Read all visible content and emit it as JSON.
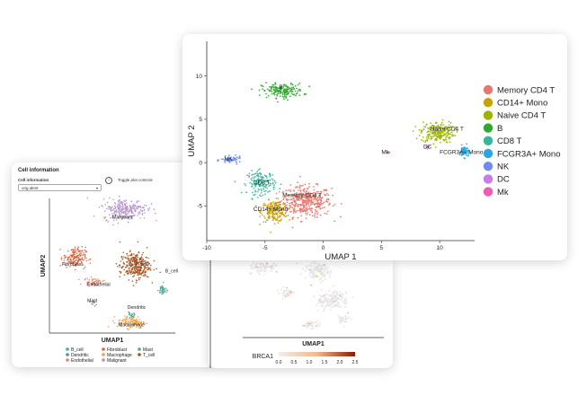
{
  "left_panel": {
    "title": "Cell information",
    "field_label": "Cell information",
    "select_value": "orig.ident",
    "toggle_label": "Toggle plot controls",
    "help_glyph": "?",
    "caret_glyph": "▾"
  },
  "chart_data": [
    {
      "type": "scatter",
      "xlabel": "UMAP 1",
      "ylabel": "UMAP 2",
      "xlim": [
        -10,
        13
      ],
      "ylim": [
        -9,
        14
      ],
      "xticks": [
        -10,
        -5,
        0,
        5,
        10
      ],
      "yticks": [
        -5,
        0,
        5,
        10
      ],
      "legend_position": "right",
      "clusters": [
        {
          "name": "Memory CD4 T",
          "color": "#e8776f",
          "cx": -1.5,
          "cy": -4.5,
          "sx": 2.0,
          "sy": 1.6,
          "n": 420,
          "label": "Memory CD4 T",
          "lx": -3.5,
          "ly": -4.0
        },
        {
          "name": "CD14+ Mono",
          "color": "#c9a200",
          "cx": -4.2,
          "cy": -5.6,
          "sx": 1.0,
          "sy": 1.1,
          "n": 200,
          "label": "CD14+ Mono",
          "lx": -6.0,
          "ly": -5.6
        },
        {
          "name": "Naive CD4 T",
          "color": "#9cb400",
          "cx": 9.8,
          "cy": 3.5,
          "sx": 1.3,
          "sy": 1.1,
          "n": 220,
          "label": "Naive CD4 T",
          "lx": 9.2,
          "ly": 3.7
        },
        {
          "name": "B",
          "color": "#2ea82e",
          "cx": -3.5,
          "cy": 8.3,
          "sx": 1.6,
          "sy": 0.75,
          "n": 180,
          "label": "B",
          "lx": -3.8,
          "ly": 8.5
        },
        {
          "name": "CD8 T",
          "color": "#34b89a",
          "cx": -5.3,
          "cy": -2.3,
          "sx": 1.1,
          "sy": 1.2,
          "n": 160,
          "label": "CD8 T",
          "lx": -6.0,
          "ly": -2.5
        },
        {
          "name": "FCGR3A+ Mono",
          "color": "#28a7e0",
          "cx": 12.1,
          "cy": 1.3,
          "sx": 0.35,
          "sy": 0.6,
          "n": 70,
          "label": "FCGR3A+ Mono",
          "lx": 10.0,
          "ly": 1.0
        },
        {
          "name": "NK",
          "color": "#6e8cf2",
          "cx": -7.9,
          "cy": 0.3,
          "sx": 0.8,
          "sy": 0.35,
          "n": 60,
          "label": "NK",
          "lx": -8.5,
          "ly": 0.2
        },
        {
          "name": "DC",
          "color": "#c77ce8",
          "cx": 9.0,
          "cy": 1.8,
          "sx": 0.2,
          "sy": 0.2,
          "n": 10,
          "label": "DC",
          "lx": 8.6,
          "ly": 1.6
        },
        {
          "name": "Mk",
          "color": "#f05ab4",
          "cx": 5.5,
          "cy": 1.2,
          "sx": 0.12,
          "sy": 0.12,
          "n": 3,
          "label": "Mk",
          "lx": 5.0,
          "ly": 1.0
        }
      ]
    },
    {
      "type": "scatter",
      "xlabel": "UMAP1",
      "ylabel": "UMAP2",
      "xlim": [
        0,
        10
      ],
      "ylim": [
        0,
        10
      ],
      "legend_position": "bottom",
      "legend_columns": 3,
      "clusters": [
        {
          "name": "B_cell",
          "color": "#4aa99a",
          "cx": 9.0,
          "cy": 3.2,
          "sx": 0.3,
          "sy": 0.4,
          "n": 40,
          "label": "B_cell",
          "lx": 9.2,
          "ly": 4.5
        },
        {
          "name": "Dendritic",
          "color": "#3c9e90",
          "cx": 6.5,
          "cy": 1.3,
          "sx": 0.25,
          "sy": 0.2,
          "n": 20,
          "label": "Dendritic",
          "lx": 6.2,
          "ly": 1.8
        },
        {
          "name": "Endothelial",
          "color": "#e0866a",
          "cx": 3.5,
          "cy": 3.8,
          "sx": 0.7,
          "sy": 0.25,
          "n": 50,
          "label": "Endothelial",
          "lx": 3.0,
          "ly": 3.5
        },
        {
          "name": "Fibroblast",
          "color": "#d9653f",
          "cx": 2.0,
          "cy": 5.6,
          "sx": 0.8,
          "sy": 0.7,
          "n": 170,
          "label": "Fibroblast",
          "lx": 1.0,
          "ly": 5.0
        },
        {
          "name": "Macrophage",
          "color": "#f0a13c",
          "cx": 6.5,
          "cy": 0.8,
          "sx": 1.0,
          "sy": 0.4,
          "n": 120,
          "label": "Macrophage",
          "lx": 5.5,
          "ly": 0.5
        },
        {
          "name": "Malignant",
          "color": "#b18fcb",
          "cx": 6.0,
          "cy": 9.2,
          "sx": 1.6,
          "sy": 0.7,
          "n": 260,
          "label": "Malignant",
          "lx": 5.0,
          "ly": 8.5
        },
        {
          "name": "Mast",
          "color": "#7a8e8a",
          "cx": 3.5,
          "cy": 2.2,
          "sx": 0.2,
          "sy": 0.15,
          "n": 10,
          "label": "Mast",
          "lx": 3.0,
          "ly": 2.3
        },
        {
          "name": "T_cell",
          "color": "#a4501c",
          "cx": 6.8,
          "cy": 5.0,
          "sx": 1.1,
          "sy": 0.9,
          "n": 320,
          "label": "T_cell",
          "lx": 6.8,
          "ly": 5.0
        }
      ]
    },
    {
      "type": "scatter",
      "xlabel": "UMAP1",
      "colorbar_label": "BRCA1",
      "colorbar_ticks": [
        "0.0",
        "0.5",
        "1.0",
        "1.5",
        "2.0",
        "2.5"
      ],
      "colorbar_range": [
        0,
        2.5
      ],
      "colors": {
        "low": "#eeeeee",
        "mid": "#f5b98a",
        "high": "#8b1a00"
      }
    }
  ]
}
